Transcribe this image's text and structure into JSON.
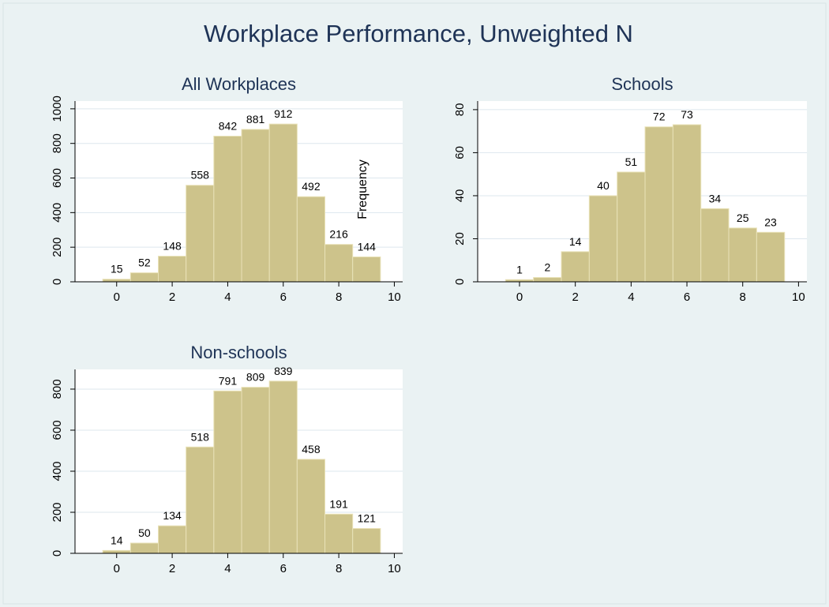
{
  "title": "Workplace Performance, Unweighted N",
  "y_label": "Frequency",
  "chart_data": [
    {
      "type": "histogram",
      "title": "All Workplaces",
      "bins": [
        -0.5,
        0.5,
        1.5,
        2.5,
        3.5,
        4.5,
        5.5,
        6.5,
        7.5,
        8.5,
        9.5
      ],
      "values": [
        15,
        52,
        148,
        558,
        842,
        881,
        912,
        492,
        216,
        144
      ],
      "color": "#cdc38b",
      "xlim": [
        -1.5,
        10.3
      ],
      "xticks": [
        0,
        2,
        4,
        6,
        8,
        10
      ],
      "ylim": [
        0,
        1045
      ],
      "yticks": [
        0,
        200,
        400,
        600,
        800,
        1000
      ],
      "grid": true
    },
    {
      "type": "histogram",
      "title": "Schools",
      "bins": [
        -0.5,
        0.5,
        1.5,
        2.5,
        3.5,
        4.5,
        5.5,
        6.5,
        7.5,
        8.5,
        9.5
      ],
      "values": [
        1,
        2,
        14,
        40,
        51,
        72,
        73,
        34,
        25,
        23
      ],
      "color": "#cdc38b",
      "xlim": [
        -1.5,
        10.3
      ],
      "xticks": [
        0,
        2,
        4,
        6,
        8,
        10
      ],
      "ylim": [
        0,
        84
      ],
      "yticks": [
        0,
        20,
        40,
        60,
        80
      ],
      "grid": true
    },
    {
      "type": "histogram",
      "title": "Non-schools",
      "bins": [
        -0.5,
        0.5,
        1.5,
        2.5,
        3.5,
        4.5,
        5.5,
        6.5,
        7.5,
        8.5,
        9.5
      ],
      "values": [
        14,
        50,
        134,
        518,
        791,
        809,
        839,
        458,
        191,
        121
      ],
      "color": "#cdc38b",
      "xlim": [
        -1.5,
        10.3
      ],
      "xticks": [
        0,
        2,
        4,
        6,
        8,
        10
      ],
      "ylim": [
        0,
        896
      ],
      "yticks": [
        0,
        200,
        400,
        600,
        800
      ],
      "grid": true
    }
  ]
}
